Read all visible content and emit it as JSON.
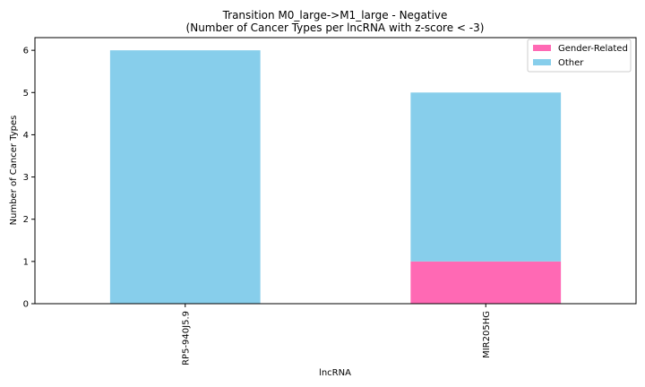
{
  "chart_data": {
    "type": "bar",
    "stacked": true,
    "title": "Transition M0_large->M1_large - Negative",
    "subtitle": "(Number of Cancer Types per lncRNA with z-score < -3)",
    "xlabel": "lncRNA",
    "ylabel": "Number of Cancer Types",
    "categories": [
      "RP5-940J5.9",
      "MIR205HG"
    ],
    "series": [
      {
        "name": "Gender-Related",
        "values": [
          0,
          1
        ],
        "color": "#ff69b4"
      },
      {
        "name": "Other",
        "values": [
          6,
          4
        ],
        "color": "#87ceeb"
      }
    ],
    "ylim": [
      0,
      6.3
    ],
    "yticks": [
      0,
      1,
      2,
      3,
      4,
      5,
      6
    ],
    "grid": false,
    "legend": "top-right"
  }
}
